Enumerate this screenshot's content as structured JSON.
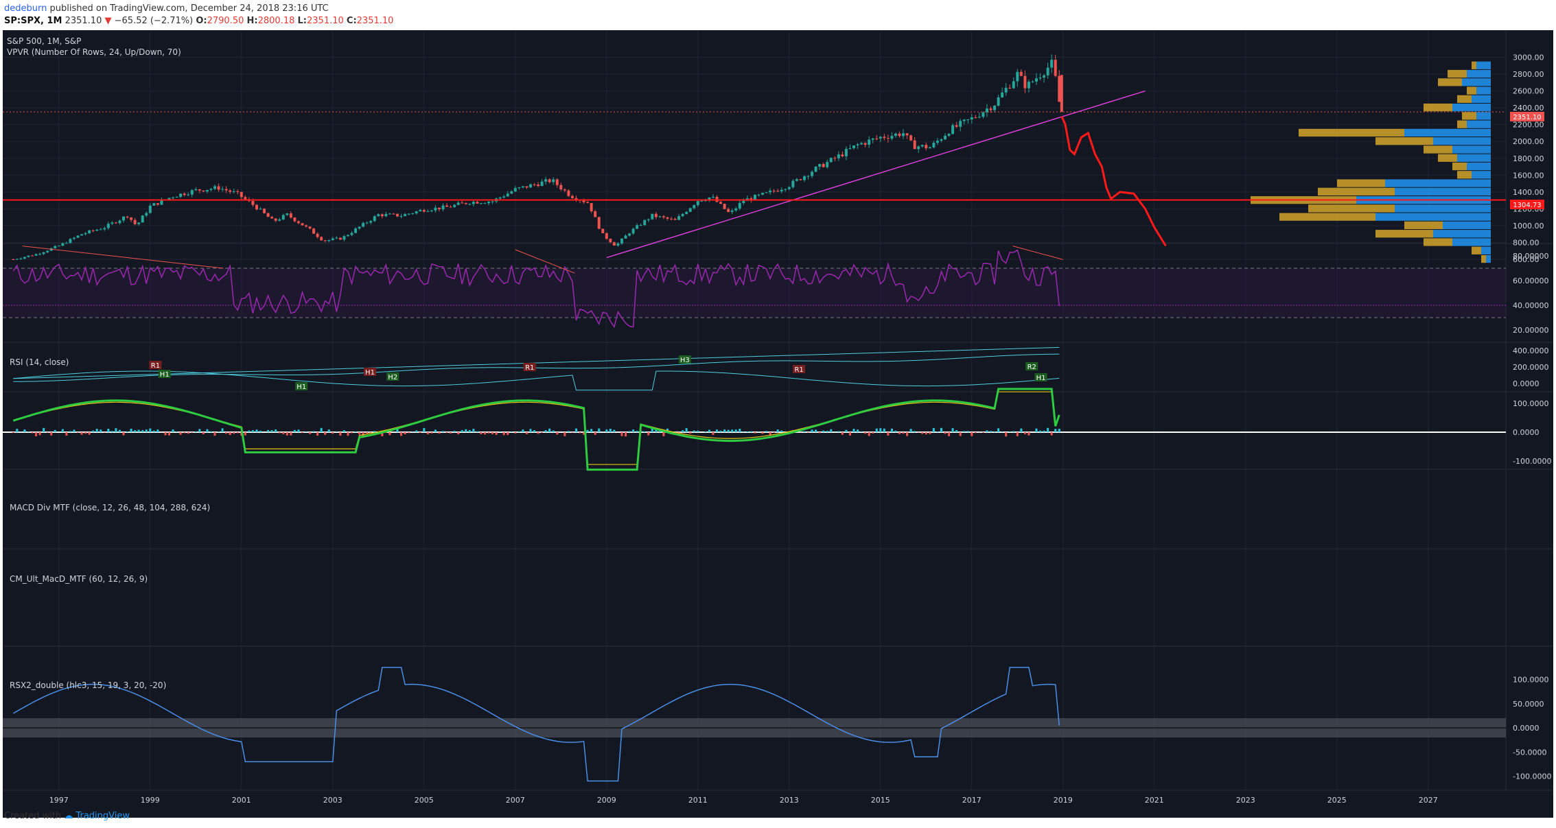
{
  "header": {
    "user": "dedeburn",
    "published_text": "published on TradingView.com, December 24, 2018 23:16 UTC",
    "symbol": "SP:SPX, 1M",
    "price": "2351.10",
    "change_arrow": "▼",
    "change": "−65.52 (−2.71%)",
    "o_label": "O:",
    "o_value": "2790.50",
    "h_label": "H:",
    "h_value": "2800.18",
    "l_label": "L:",
    "l_value": "2351.10",
    "c_label": "C:",
    "c_value": "2351.10"
  },
  "colors": {
    "bg": "#131722",
    "grid": "#1f2433",
    "up": "#26a69a",
    "down": "#ef5350",
    "magenta": "#d63fd6",
    "rsi": "#9c27b0",
    "macd_line": "#4dd0e1",
    "red_line": "#ff1a1a",
    "vpvr_up": "#2196f3",
    "vpvr_down": "#d4a52a",
    "rsx": "#4a8fe8"
  },
  "panes": {
    "main": {
      "title": "S&P 500, 1M, S&P",
      "subtitle": "VPVR (Number Of Rows, 24, Up/Down, 70)",
      "y_ticks": [
        "3000.00",
        "2800.00",
        "2600.00",
        "2400.00",
        "2200.00",
        "2000.00",
        "1800.00",
        "1600.00",
        "1400.00",
        "1200.00",
        "1000.00",
        "800.00",
        "600.00"
      ],
      "price_badge": "2351.10",
      "level_badge": "1304.73"
    },
    "rsi": {
      "title": "RSI (14, close)",
      "y_ticks": [
        "80.00000",
        "60.00000",
        "40.00000",
        "20.00000"
      ]
    },
    "macd": {
      "title": "MACD Div MTF (close, 12, 26, 48, 104, 288, 624)",
      "y_ticks": [
        "400.0000",
        "200.0000",
        "0.0000"
      ],
      "markers": [
        "R1",
        "H1",
        "H1",
        "H1",
        "H2",
        "R1",
        "H3",
        "R1",
        "R2",
        "H1"
      ]
    },
    "cm": {
      "title": "CM_Ult_MacD_MTF (60, 12, 26, 9)",
      "y_ticks": [
        "100.0000",
        "0.0000",
        "-100.0000"
      ]
    },
    "rsx": {
      "title": "RSX2_double (hlc3, 15, 19, 3, 20, -20)",
      "y_ticks": [
        "100.0000",
        "50.0000",
        "0.0000",
        "-50.0000",
        "-100.0000"
      ]
    }
  },
  "x_axis": [
    "1997",
    "1999",
    "2001",
    "2003",
    "2005",
    "2007",
    "2009",
    "2011",
    "2013",
    "2015",
    "2017",
    "2019",
    "2021",
    "2023",
    "2025",
    "2027"
  ],
  "footer": {
    "created": "Created with",
    "brand": "TradingView"
  }
}
